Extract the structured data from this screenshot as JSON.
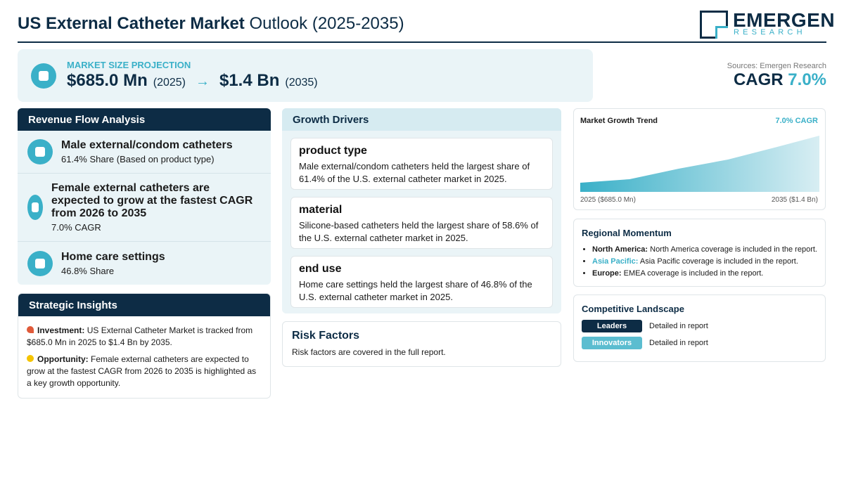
{
  "header": {
    "title_bold": "US External Catheter Market",
    "title_rest": "Outlook (2025-2035)",
    "logo_name": "EMERGEN",
    "logo_sub": "RESEARCH"
  },
  "projection": {
    "label": "MARKET SIZE PROJECTION",
    "start_value": "$685.0 Mn",
    "start_year": "(2025)",
    "arrow": "→",
    "end_value": "$1.4 Bn",
    "end_year": "(2035)"
  },
  "summary": {
    "source": "Sources: Emergen Research",
    "cagr_label": "CAGR",
    "cagr_value": "7.0%"
  },
  "revenue_flow": {
    "title": "Revenue Flow Analysis",
    "items": [
      {
        "title": "Male external/condom catheters",
        "detail": "61.4% Share (Based on product type)"
      },
      {
        "title": "Female external catheters are expected to grow at the fastest CAGR from 2026 to 2035",
        "detail": "7.0% CAGR"
      },
      {
        "title": "Home care settings",
        "detail": "46.8% Share"
      }
    ]
  },
  "strategic_insights": {
    "title": "Strategic Insights",
    "items": [
      {
        "label": "Investment:",
        "text": "US External Catheter Market is tracked from $685.0 Mn in 2025 to $1.4 Bn by 2035."
      },
      {
        "label": "Opportunity:",
        "text": "Female external catheters are expected to grow at the fastest CAGR from 2026 to 2035 is highlighted as a key growth opportunity."
      }
    ]
  },
  "growth_drivers": {
    "title": "Growth Drivers",
    "items": [
      {
        "title": "product type",
        "text": "Male external/condom catheters held the largest share of 61.4% of the U.S. external catheter market in 2025."
      },
      {
        "title": "material",
        "text": "Silicone-based catheters held the largest share of 58.6% of the U.S. external catheter market in 2025."
      },
      {
        "title": "end use",
        "text": "Home care settings held the largest share of 46.8% of the U.S. external catheter market in 2025."
      }
    ]
  },
  "risk_factors": {
    "title": "Risk Factors",
    "text": "Risk factors are covered in the full report."
  },
  "growth_trend": {
    "title": "Market Growth Trend",
    "cagr": "7.0% CAGR",
    "start_label": "2025 ($685.0 Mn)",
    "end_label": "2035 ($1.4 Bn)"
  },
  "regional": {
    "title": "Regional Momentum",
    "items": [
      {
        "region": "North America:",
        "text": "North America coverage is included in the report."
      },
      {
        "region": "Asia Pacific:",
        "text": "Asia Pacific coverage is included in the report."
      },
      {
        "region": "Europe:",
        "text": "EMEA coverage is included in the report."
      }
    ]
  },
  "competitive": {
    "title": "Competitive Landscape",
    "items": [
      {
        "badge": "Leaders",
        "text": "Detailed in report"
      },
      {
        "badge": "Innovators",
        "text": "Detailed in report"
      }
    ]
  }
}
